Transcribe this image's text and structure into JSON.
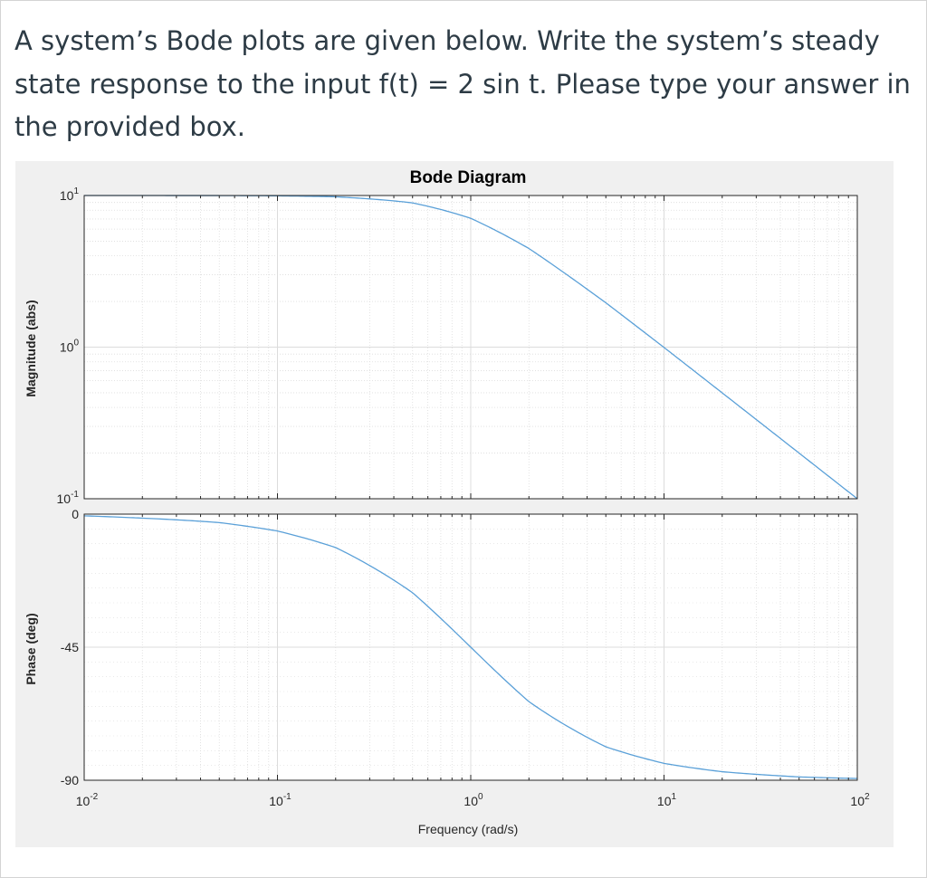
{
  "question": {
    "text": "A system’s Bode plots are given below. Write the system’s steady state response to the input f(t) = 2 sin t. Please type your answer in the provided box."
  },
  "colors": {
    "line": "#5aa0d8",
    "grid": "#dcdcdc",
    "axis": "#262626",
    "panel_bg": "#f0f0f0",
    "plot_bg": "#ffffff"
  },
  "chart_data": [
    {
      "type": "line",
      "title": "Bode Diagram",
      "xlabel": "Frequency  (rad/s)",
      "ylabel": "Magnitude (abs)",
      "xscale": "log",
      "yscale": "log",
      "xlim": [
        0.01,
        100
      ],
      "ylim": [
        0.1,
        10
      ],
      "grid": true,
      "x_ticks": [
        {
          "base": "10",
          "exp": "-2"
        },
        {
          "base": "10",
          "exp": "-1"
        },
        {
          "base": "10",
          "exp": "0"
        },
        {
          "base": "10",
          "exp": "1"
        },
        {
          "base": "10",
          "exp": "2"
        }
      ],
      "y_ticks": [
        {
          "base": "10",
          "exp": "1"
        },
        {
          "base": "10",
          "exp": "0"
        },
        {
          "base": "10",
          "exp": "-1"
        }
      ],
      "series": [
        {
          "x": [
            0.01,
            0.05,
            0.1,
            0.2,
            0.5,
            1,
            2,
            5,
            10,
            20,
            50,
            100
          ],
          "y": [
            10.0,
            9.99,
            9.95,
            9.81,
            8.94,
            7.07,
            4.47,
            1.96,
            0.995,
            0.499,
            0.2,
            0.1
          ]
        }
      ]
    },
    {
      "type": "line",
      "xlabel": "Frequency  (rad/s)",
      "ylabel": "Phase (deg)",
      "xscale": "log",
      "xlim": [
        0.01,
        100
      ],
      "ylim": [
        -90,
        0
      ],
      "grid": true,
      "y_ticks": [
        "0",
        "-45",
        "-90"
      ],
      "series": [
        {
          "x": [
            0.01,
            0.05,
            0.1,
            0.2,
            0.5,
            1,
            2,
            5,
            10,
            20,
            50,
            100
          ],
          "y": [
            -0.57,
            -2.86,
            -5.71,
            -11.3,
            -26.6,
            -45.0,
            -63.4,
            -78.7,
            -84.3,
            -87.1,
            -88.9,
            -89.4
          ]
        }
      ]
    }
  ]
}
